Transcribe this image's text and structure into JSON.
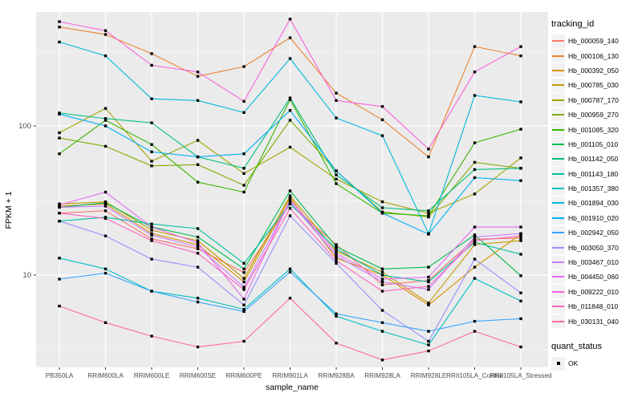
{
  "chart_data": {
    "type": "line",
    "title": "",
    "xlabel": "sample_name",
    "ylabel": "FPKM + 1",
    "y_scale": "log10",
    "y_ticks": [
      10,
      100
    ],
    "y_minor": [
      3.162,
      31.62,
      316.2
    ],
    "ylim": [
      2.4,
      580
    ],
    "panel_bg": "#ebebeb",
    "grid_color": "#ffffff",
    "point_color": "#000000",
    "categories": [
      "PB350LA",
      "RRIM600LA",
      "RRIM600LE",
      "RRIM600SE",
      "RRIM600PE",
      "RRIM901LA",
      "RRIM928BA",
      "RRIM928LA",
      "RRIM928LE",
      "RRII105LA_Control",
      "RRII105LA_Stressed"
    ],
    "legend_title": "tracking_id",
    "legend2_title": "quant_status",
    "legend2_entry": "OK",
    "series": [
      {
        "name": "Hb_000059_140",
        "color": "#F8766D",
        "values": [
          26,
          27,
          17.5,
          15,
          10.4,
          30,
          16,
          8.6,
          9.2,
          17.4,
          17.7
        ]
      },
      {
        "name": "Hb_000106_130",
        "color": "#EA8331",
        "values": [
          460,
          410,
          305,
          215,
          250,
          390,
          166,
          110,
          62,
          340,
          295
        ]
      },
      {
        "name": "Hb_000392_050",
        "color": "#D89000",
        "values": [
          29,
          30,
          19,
          16,
          9.0,
          33,
          13,
          10,
          6.3,
          11.3,
          18.8
        ]
      },
      {
        "name": "Hb_000785_030",
        "color": "#C09B00",
        "values": [
          30,
          31,
          20,
          17,
          9.5,
          34,
          14.5,
          10.5,
          6.5,
          16,
          17
        ]
      },
      {
        "name": "Hb_000787_170",
        "color": "#A3A500",
        "values": [
          90,
          131,
          58,
          80,
          48,
          72,
          44,
          31,
          26,
          35,
          61
        ]
      },
      {
        "name": "Hb_000959_270",
        "color": "#7CAE00",
        "values": [
          83,
          73,
          54,
          55,
          40,
          109,
          50,
          26.5,
          24.5,
          57,
          52
        ]
      },
      {
        "name": "Hb_001085_320",
        "color": "#39B600",
        "values": [
          65,
          109,
          75,
          42,
          36,
          150,
          41,
          26,
          25,
          77,
          95
        ]
      },
      {
        "name": "Hb_001105_010",
        "color": "#00BB4E",
        "values": [
          28.5,
          30.5,
          21,
          18,
          11,
          36.7,
          15.5,
          11,
          11.3,
          18.6,
          9.9
        ]
      },
      {
        "name": "Hb_001142_050",
        "color": "#00BF7D",
        "values": [
          122,
          112,
          105,
          62,
          52,
          154,
          47,
          28.3,
          27,
          51,
          52
        ]
      },
      {
        "name": "Hb_001143_180",
        "color": "#00C1A3",
        "values": [
          23,
          24.4,
          22,
          20.5,
          12,
          30,
          15,
          10,
          9,
          16.6,
          13.8
        ]
      },
      {
        "name": "Hb_001357_380",
        "color": "#00BFC4",
        "values": [
          13,
          11,
          7.8,
          7.0,
          5.9,
          11,
          5.3,
          4.2,
          3.4,
          9.5,
          6.7
        ]
      },
      {
        "name": "Hb_001894_030",
        "color": "#00BADE",
        "values": [
          365,
          295,
          152,
          148,
          123,
          283,
          113,
          86,
          19,
          160,
          145
        ]
      },
      {
        "name": "Hb_001910_020",
        "color": "#00B0F6",
        "values": [
          120,
          100,
          67,
          62,
          65,
          127,
          50,
          26,
          18.8,
          45,
          43
        ]
      },
      {
        "name": "Hb_002942_050",
        "color": "#35A2FF",
        "values": [
          9.4,
          10.3,
          7.8,
          6.6,
          5.7,
          10.5,
          5.5,
          4.8,
          4.2,
          4.9,
          5.1
        ]
      },
      {
        "name": "Hb_003050_370",
        "color": "#9590FF",
        "values": [
          23,
          18.3,
          12.8,
          11.3,
          6.3,
          25,
          12,
          5.8,
          3.6,
          12.8,
          7.6
        ]
      },
      {
        "name": "Hb_003467_010",
        "color": "#C77CFF",
        "values": [
          28.5,
          29,
          18.5,
          15.5,
          8.3,
          31,
          13.5,
          9.0,
          8.0,
          18,
          19
        ]
      },
      {
        "name": "Hb_004450_060",
        "color": "#E76BF3",
        "values": [
          29.5,
          36,
          21,
          16.5,
          6.9,
          32,
          14,
          9.4,
          9.7,
          21,
          21
        ]
      },
      {
        "name": "Hb_009222_010",
        "color": "#FA62DB",
        "values": [
          500,
          435,
          255,
          230,
          146,
          520,
          148,
          135,
          70,
          230,
          340
        ]
      },
      {
        "name": "Hb_011848_010",
        "color": "#FF62BC",
        "values": [
          26,
          24,
          17,
          14,
          8.0,
          28,
          12.5,
          7.8,
          8.4,
          17,
          18.3
        ]
      },
      {
        "name": "Hb_030131_040",
        "color": "#FF6A98",
        "values": [
          6.2,
          4.8,
          3.9,
          3.3,
          3.6,
          7.0,
          3.5,
          2.7,
          3.1,
          4.2,
          3.3
        ]
      }
    ]
  }
}
